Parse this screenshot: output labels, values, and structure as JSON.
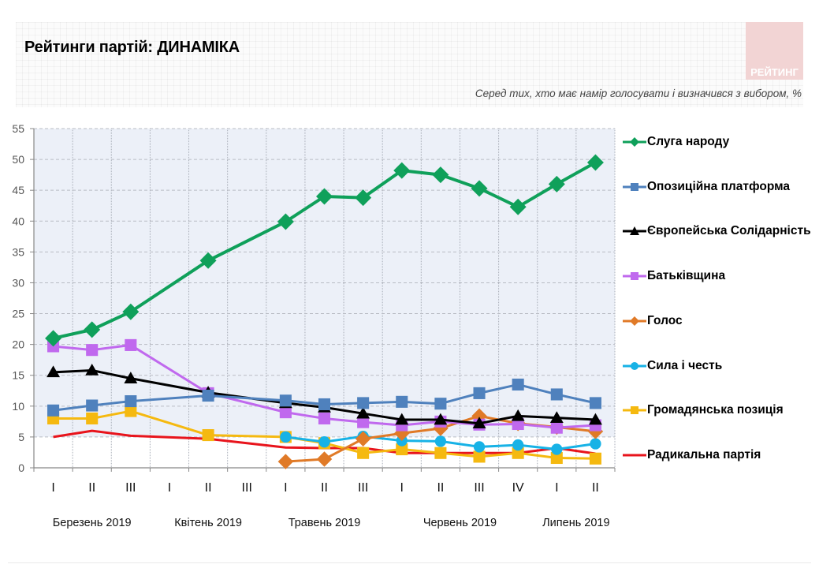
{
  "header": {
    "title": "Рейтинги партій: ДИНАМІКА",
    "logo_text": "РЕЙТИНГ",
    "subtitle": "Серед тих, хто має намір голосувати і визначився з вибором, %"
  },
  "chart_data": {
    "type": "line",
    "title": "Рейтинги партій: ДИНАМІКА",
    "subtitle": "Серед тих, хто має намір голосувати і визначився з вибором, %",
    "xlabel": "",
    "ylabel": "",
    "ylim": [
      0,
      55
    ],
    "y_ticks": [
      0,
      5,
      10,
      15,
      20,
      25,
      30,
      35,
      40,
      45,
      50,
      55
    ],
    "grid": true,
    "legend_position": "right",
    "categories": [
      "I",
      "II",
      "III",
      "I",
      "II",
      "III",
      "I",
      "II",
      "III",
      "I",
      "II",
      "III",
      "IV",
      "I",
      "II"
    ],
    "month_groups": [
      {
        "label": "Березень 2019",
        "start": 0,
        "end": 2
      },
      {
        "label": "Квітень 2019",
        "start": 3,
        "end": 5
      },
      {
        "label": "Травень 2019",
        "start": 6,
        "end": 8
      },
      {
        "label": "Червень 2019",
        "start": 9,
        "end": 12
      },
      {
        "label": "Липень 2019",
        "start": 13,
        "end": 14
      }
    ],
    "series": [
      {
        "name": "Слуга народу",
        "color": "#0fa05a",
        "marker": "diamond",
        "values": [
          21.0,
          22.4,
          25.3,
          null,
          33.6,
          null,
          39.9,
          44.0,
          43.8,
          48.2,
          47.5,
          45.3,
          42.3,
          46.0,
          49.5
        ]
      },
      {
        "name": "Опозиційна платформа",
        "color": "#4f81bd",
        "marker": "square",
        "values": [
          9.3,
          10.1,
          10.8,
          null,
          11.7,
          null,
          10.9,
          10.3,
          10.5,
          10.7,
          10.4,
          12.1,
          13.5,
          11.9,
          10.5
        ]
      },
      {
        "name": "Європейська Солідарність",
        "color": "#000000",
        "marker": "triangle",
        "values": [
          15.5,
          15.8,
          14.5,
          null,
          12.2,
          null,
          10.5,
          9.8,
          8.8,
          7.8,
          7.8,
          7.2,
          8.4,
          8.1,
          7.8
        ]
      },
      {
        "name": "Батьківщина",
        "color": "#c069ee",
        "marker": "square",
        "values": [
          19.7,
          19.1,
          19.9,
          null,
          12.1,
          null,
          9.0,
          8.0,
          7.4,
          6.9,
          7.5,
          7.0,
          7.1,
          6.5,
          6.9
        ]
      },
      {
        "name": "Голос",
        "color": "#e07a27",
        "marker": "diamond",
        "values": [
          null,
          null,
          null,
          null,
          null,
          null,
          1.0,
          1.4,
          4.7,
          5.6,
          6.4,
          8.4,
          7.2,
          6.6,
          5.9
        ]
      },
      {
        "name": "Сила і честь",
        "color": "#17b2e6",
        "marker": "circle",
        "values": [
          null,
          null,
          null,
          null,
          null,
          null,
          5.0,
          4.2,
          5.1,
          4.4,
          4.3,
          3.4,
          3.7,
          3.0,
          3.9
        ]
      },
      {
        "name": "Громадянська позиція",
        "color": "#f5b910",
        "marker": "square",
        "values": [
          8.0,
          8.0,
          9.2,
          null,
          5.3,
          null,
          5.0,
          4.0,
          2.4,
          3.0,
          2.4,
          1.8,
          2.4,
          1.6,
          1.5
        ]
      },
      {
        "name": "Радикальна партія",
        "color": "#e8141c",
        "marker": "none",
        "values": [
          5.0,
          6.0,
          5.2,
          null,
          4.7,
          null,
          3.3,
          3.2,
          3.2,
          2.4,
          2.4,
          2.4,
          2.4,
          3.2,
          2.3
        ]
      }
    ]
  }
}
